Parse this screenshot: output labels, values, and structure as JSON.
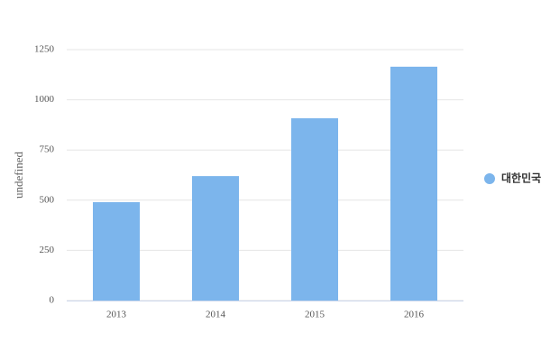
{
  "chart_data": {
    "type": "bar",
    "y_axis_label": "undefined",
    "categories": [
      "2013",
      "2014",
      "2015",
      "2016"
    ],
    "series": [
      {
        "name": "대한민국",
        "color": "#7cb5ec",
        "values": [
          490,
          620,
          908,
          1165
        ]
      }
    ],
    "ylim": [
      0,
      1250
    ],
    "yticks": [
      0,
      250,
      500,
      750,
      1000,
      1250
    ],
    "grid": true,
    "legend": "right"
  }
}
